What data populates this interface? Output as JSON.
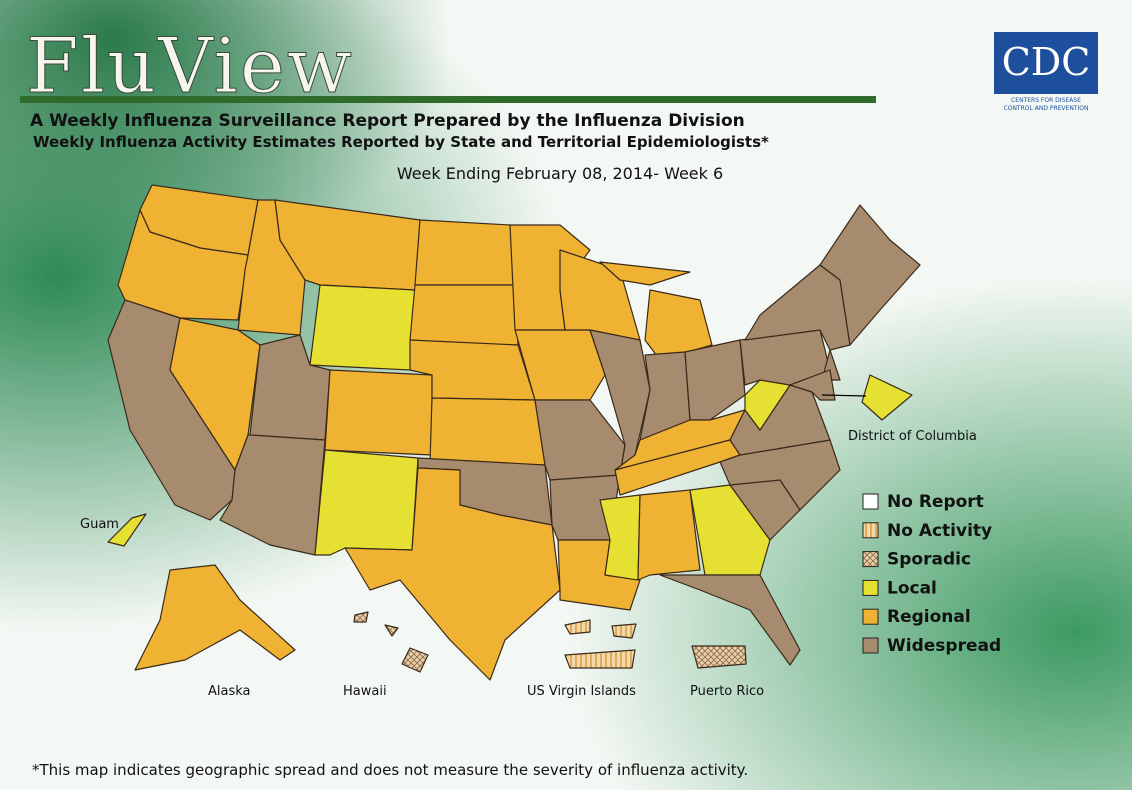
{
  "header": {
    "title": "FluView",
    "subtitle": "A Weekly Influenza Surveillance Report Prepared by the Influenza Division",
    "subtitle2": "Weekly Influenza Activity Estimates Reported by State and Territorial Epidemiologists*",
    "week": "Week Ending February 08, 2014- Week 6"
  },
  "logo": {
    "text": "CDC",
    "line1": "Centers for Disease",
    "line2": "Control and Prevention"
  },
  "labels": {
    "dc": "District of Columbia",
    "guam": "Guam",
    "alaska": "Alaska",
    "hawaii": "Hawaii",
    "vi": "US Virgin Islands",
    "pr": "Puerto Rico"
  },
  "legend": [
    {
      "name": "No Report",
      "color": "#ffffff"
    },
    {
      "name": "No Activity",
      "color": "#f4d9a8",
      "pattern": "stripes"
    },
    {
      "name": "Sporadic",
      "color": "#e8cfa8",
      "pattern": "crosshatch"
    },
    {
      "name": "Local",
      "color": "#e6e032"
    },
    {
      "name": "Regional",
      "color": "#f0b232"
    },
    {
      "name": "Widespread",
      "color": "#a68b6e"
    }
  ],
  "footnote": "*This map indicates geographic spread and does not measure the severity of influenza activity."
}
